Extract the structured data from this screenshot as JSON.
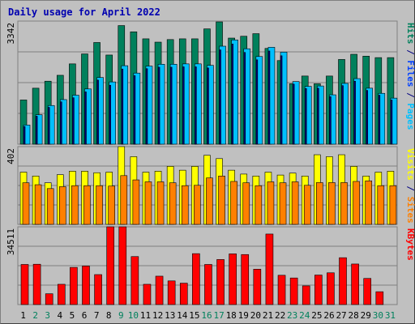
{
  "chart_data": {
    "type": "bar",
    "title": "Daily usage for April 2022",
    "days": [
      "1",
      "2",
      "3",
      "4",
      "5",
      "6",
      "7",
      "8",
      "9",
      "10",
      "11",
      "12",
      "13",
      "14",
      "15",
      "16",
      "17",
      "18",
      "19",
      "20",
      "21",
      "22",
      "23",
      "24",
      "25",
      "26",
      "27",
      "28",
      "29",
      "30",
      "31"
    ],
    "weekend_days": [
      2,
      3,
      9,
      10,
      16,
      17,
      23,
      24,
      30,
      31
    ],
    "panels": [
      {
        "max_label": "3342",
        "ylim": [
          0,
          3342
        ],
        "axis_labels": [
          {
            "text": "Hits",
            "color": "#00805c"
          },
          {
            "text": " / ",
            "color": "#000080"
          },
          {
            "text": "Files",
            "color": "#0040ff"
          },
          {
            "text": " / ",
            "color": "#000080"
          },
          {
            "text": "Pages",
            "color": "#00c0ff"
          }
        ],
        "series": [
          {
            "name": "Hits",
            "color": "#00805c",
            "values": [
              1200,
              1520,
              1710,
              1870,
              2180,
              2450,
              2760,
              2420,
              3220,
              3050,
              2860,
              2770,
              2840,
              2860,
              2860,
              3130,
              3320,
              2880,
              2930,
              3000,
              2600,
              2270,
              1640,
              1850,
              1640,
              1850,
              2300,
              2440,
              2390,
              2350,
              2350
            ]
          },
          {
            "name": "Files",
            "color": "#00c0ff",
            "values": [
              520,
              800,
              1050,
              1210,
              1330,
              1500,
              1810,
              1690,
              2130,
              1930,
              2120,
              2170,
              2170,
              2180,
              2180,
              2140,
              2660,
              2830,
              2590,
              2380,
              2630,
              2500,
              1700,
              1570,
              1580,
              1340,
              1650,
              1780,
              1520,
              1380,
              1250
            ]
          },
          {
            "name": "Pages",
            "color": "#000080",
            "values": [
              480,
              760,
              1000,
              1150,
              1260,
              1420,
              1740,
              1600,
              2040,
              1860,
              2050,
              2090,
              2090,
              2100,
              2100,
              2070,
              2560,
              2720,
              2490,
              2290,
              2530,
              2400,
              1630,
              1510,
              1520,
              1290,
              1590,
              1710,
              1460,
              1330,
              1200
            ]
          }
        ]
      },
      {
        "max_label": "402",
        "ylim": [
          0,
          402
        ],
        "axis_labels": [
          {
            "text": "Visits",
            "color": "#ffff00"
          },
          {
            "text": " / ",
            "color": "#000080"
          },
          {
            "text": "Sites",
            "color": "#ff8000"
          }
        ],
        "series": [
          {
            "name": "Visits",
            "color": "#ffff00",
            "values": [
              270,
              250,
              215,
              257,
              275,
              275,
              267,
              270,
              402,
              350,
              270,
              275,
              300,
              280,
              300,
              357,
              340,
              280,
              260,
              250,
              270,
              255,
              265,
              250,
              360,
              350,
              360,
              300,
              250,
              270,
              275
            ]
          },
          {
            "name": "Sites",
            "color": "#ff8000",
            "values": [
              215,
              205,
              185,
              195,
              200,
              200,
              200,
              198,
              252,
              230,
              220,
              220,
              215,
              200,
              202,
              240,
              250,
              222,
              215,
              200,
              220,
              215,
              220,
              202,
              216,
              216,
              216,
              222,
              225,
              200,
              200
            ]
          }
        ]
      },
      {
        "max_label": "34511",
        "ylim": [
          0,
          34511
        ],
        "axis_labels": [
          {
            "text": "KBytes",
            "color": "#ff0000"
          }
        ],
        "series": [
          {
            "name": "KBytes",
            "color": "#ff0000",
            "values": [
              17800,
              17900,
              4800,
              9000,
              16500,
              17100,
              13300,
              34511,
              34511,
              21300,
              9000,
              12600,
              10500,
              9500,
              22600,
              17800,
              20000,
              22500,
              22200,
              15700,
              31300,
              13000,
              11800,
              8300,
              13100,
              14100,
              20800,
              18000,
              11600,
              5700,
              0
            ]
          }
        ]
      }
    ]
  }
}
